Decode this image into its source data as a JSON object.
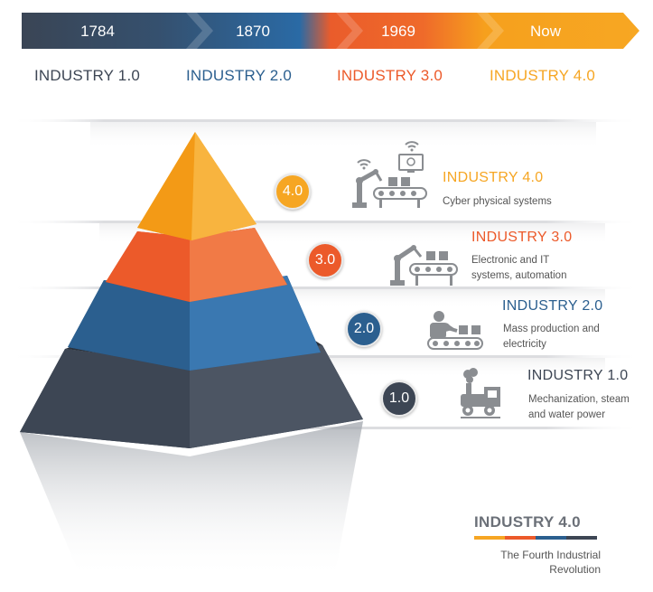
{
  "timeline": {
    "years": [
      "1784",
      "1870",
      "1969",
      "Now"
    ],
    "eras": [
      "INDUSTRY 1.0",
      "INDUSTRY 2.0",
      "INDUSTRY 3.0",
      "INDUSTRY 4.0"
    ]
  },
  "levels": [
    {
      "badge": "4.0",
      "title": "INDUSTRY 4.0",
      "desc": "Cyber physical systems",
      "icon": "cyber-robot-icon"
    },
    {
      "badge": "3.0",
      "title": "INDUSTRY 3.0",
      "desc": "Electronic and IT\nsystems, automation",
      "icon": "robot-arm-conveyor-icon"
    },
    {
      "badge": "2.0",
      "title": "INDUSTRY 2.0",
      "desc": "Mass production and\nelectricity",
      "icon": "worker-conveyor-icon"
    },
    {
      "badge": "1.0",
      "title": "INDUSTRY 1.0",
      "desc": "Mechanization, steam\nand water power",
      "icon": "steam-engine-icon"
    }
  ],
  "footer": {
    "title": "INDUSTRY 4.0",
    "subtitle": "The Fourth Industrial\nRevolution"
  },
  "colors": {
    "industry1": "#3d4654",
    "industry2": "#2b5f8f",
    "industry3": "#ec5a2a",
    "industry4": "#f6a623",
    "icon_gray": "#8a8d91"
  }
}
